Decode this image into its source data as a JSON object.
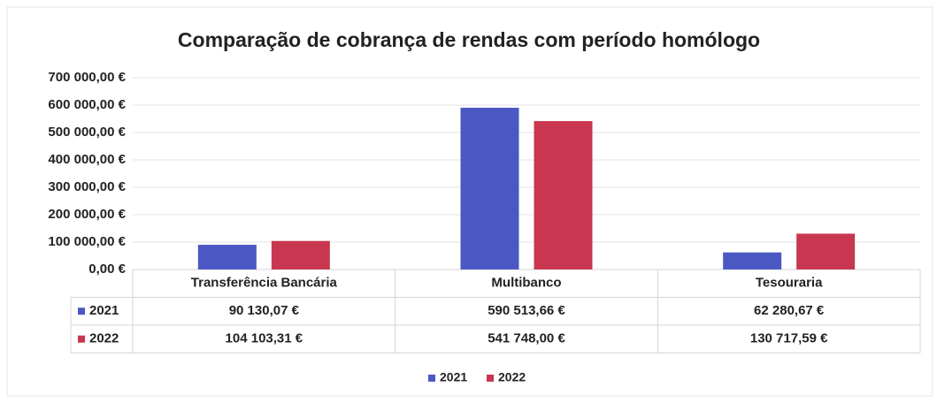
{
  "chart_data": {
    "type": "bar",
    "title": "Comparação de cobrança de rendas com período homólogo",
    "categories": [
      "Transferência Bancária",
      "Multibanco",
      "Tesouraria"
    ],
    "series": [
      {
        "name": "2021",
        "color": "#4b58c4",
        "values": [
          90130.07,
          590513.66,
          62280.67
        ],
        "value_labels": [
          "90 130,07 €",
          "590 513,66 €",
          "62 280,67 €"
        ]
      },
      {
        "name": "2022",
        "color": "#c8374f",
        "values": [
          104103.31,
          541748.0,
          130717.59
        ],
        "value_labels": [
          "104 103,31 €",
          "541 748,00 €",
          "130 717,59 €"
        ]
      }
    ],
    "ylim": [
      0,
      700000
    ],
    "yticks": [
      {
        "value": 0,
        "label": "0,00 €"
      },
      {
        "value": 100000,
        "label": "100 000,00 €"
      },
      {
        "value": 200000,
        "label": "200 000,00 €"
      },
      {
        "value": 300000,
        "label": "300 000,00 €"
      },
      {
        "value": 400000,
        "label": "400 000,00 €"
      },
      {
        "value": 500000,
        "label": "500 000,00 €"
      },
      {
        "value": 600000,
        "label": "600 000,00 €"
      },
      {
        "value": 700000,
        "label": "700 000,00 €"
      }
    ],
    "grid": true,
    "legend": "bottom"
  }
}
